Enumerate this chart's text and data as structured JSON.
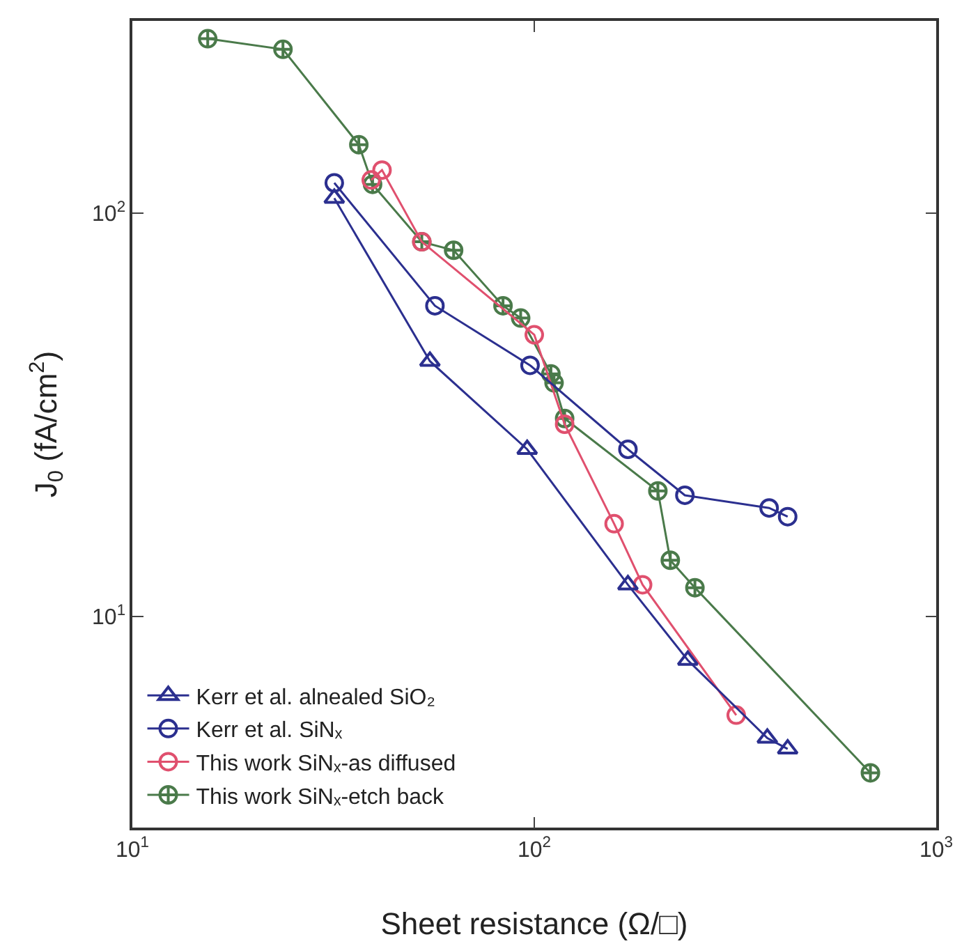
{
  "chart_data": {
    "type": "line",
    "xlabel": "Sheet resistance (Ω/□)",
    "ylabel": "J$_{0}$ (fA/cm$^{2}$)",
    "log": "xy",
    "grid": false,
    "legend": "bottom left",
    "line_style": "solid",
    "xlim": [
      10,
      1000
    ],
    "xticks": [
      {
        "value": 10,
        "label": "10$^{1}$"
      },
      {
        "value": 100,
        "label": "10$^{2}$"
      },
      {
        "value": 1000,
        "label": "10$^{3}$"
      }
    ],
    "ylim": [
      3,
      300
    ],
    "yticks": [
      {
        "value": 10,
        "label": "10$^{1}$"
      },
      {
        "value": 100,
        "label": "10$^{2}$"
      }
    ],
    "series": [
      {
        "name": "Kerr et al. alnealed SiO₂",
        "color": "#2b2f8f",
        "marker": "triangle",
        "x": [
          31.8,
          55,
          96,
          171,
          241,
          380,
          427
        ],
        "values": [
          109,
          43,
          26,
          12,
          7.8,
          5.0,
          4.7
        ]
      },
      {
        "name": "Kerr et al. SiNₓ",
        "color": "#2b2f8f",
        "marker": "circle",
        "x": [
          31.8,
          56.6,
          97.6,
          171,
          237,
          384,
          427
        ],
        "values": [
          119,
          59,
          42,
          26,
          20,
          18.6,
          17.7
        ]
      },
      {
        "name": "This work SiNₓ-as diffused",
        "color": "#e0506e",
        "marker": "circle",
        "x": [
          39.3,
          41.8,
          52.5,
          100,
          119,
          158,
          186,
          318
        ],
        "values": [
          121,
          128,
          85,
          50,
          30,
          17,
          12,
          5.7
        ]
      },
      {
        "name": "This work SiNₓ-etch back",
        "color": "#4a7a4a",
        "marker": "cross",
        "x": [
          15.4,
          23.7,
          36.6,
          39.6,
          52.5,
          63,
          83.6,
          92.5,
          110,
          112,
          119,
          203,
          218,
          251,
          686
        ],
        "values": [
          271,
          255,
          148,
          118,
          85,
          81,
          59,
          55,
          40,
          38,
          31,
          20.5,
          13.8,
          11.8,
          4.1
        ]
      }
    ]
  }
}
